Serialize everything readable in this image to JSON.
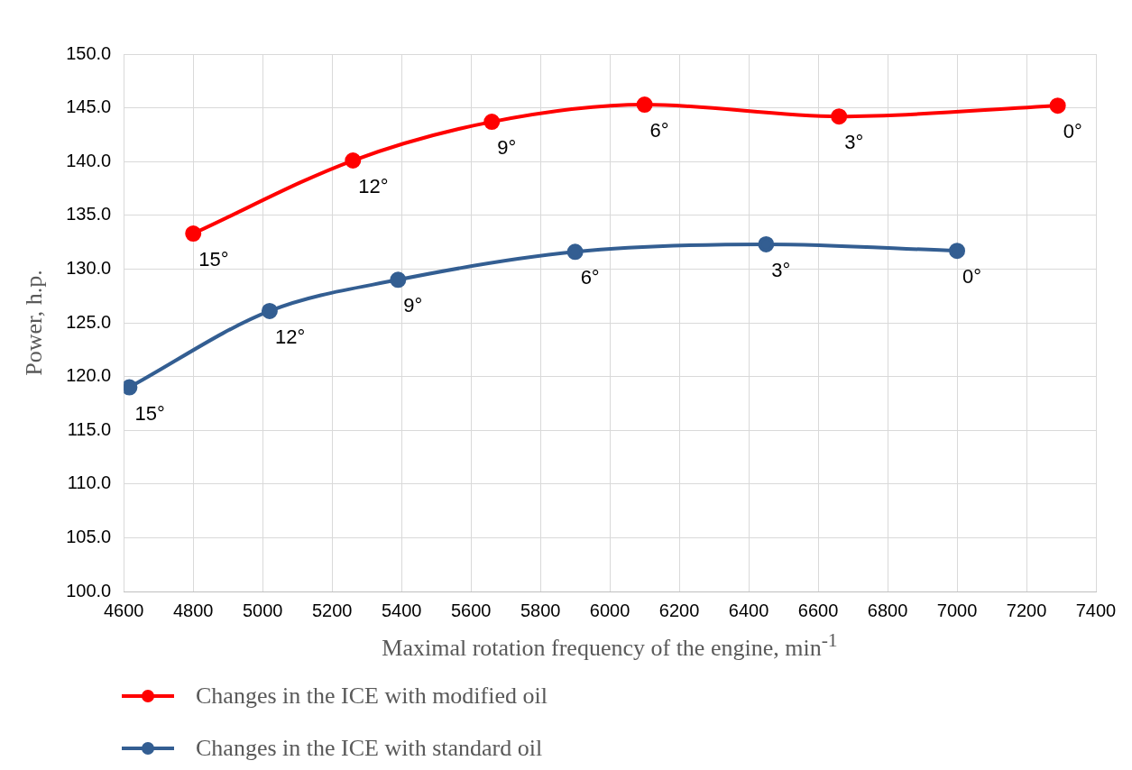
{
  "chart_data": {
    "type": "line",
    "xlabel": "Maximal rotation frequency of the engine, min$^{-1}$",
    "ylabel": "Power, h.p.",
    "xlim": [
      4600,
      7400
    ],
    "xticks": [
      4600,
      4800,
      5000,
      5200,
      5400,
      5600,
      5800,
      6000,
      6200,
      6400,
      6600,
      6800,
      7000,
      7200,
      7400
    ],
    "ylim": [
      100,
      150
    ],
    "yticks": [
      {
        "value": 100,
        "label": "100.0"
      },
      {
        "value": 105,
        "label": "105.0"
      },
      {
        "value": 110,
        "label": "110.0"
      },
      {
        "value": 115,
        "label": "115.0"
      },
      {
        "value": 120,
        "label": "120.0"
      },
      {
        "value": 125,
        "label": "125.0"
      },
      {
        "value": 130,
        "label": "130.0"
      },
      {
        "value": 135,
        "label": "135.0"
      },
      {
        "value": 140,
        "label": "140.0"
      },
      {
        "value": 145,
        "label": "145.0"
      },
      {
        "value": 150,
        "label": "150.0"
      }
    ],
    "grid": true,
    "legend": "bottom",
    "marker": "circle",
    "line_style": "solid",
    "series": [
      {
        "name": "Changes in the ICE with modified oil",
        "color": "#ff0000",
        "x": [
          4800,
          5260,
          5660,
          6100,
          6660,
          7290
        ],
        "values": [
          133.3,
          140.1,
          143.7,
          145.3,
          144.2,
          145.2
        ]
      },
      {
        "name": "Changes in the ICE with standard oil",
        "color": "#335e92",
        "x": [
          4616,
          5020,
          5390,
          5900,
          6450,
          7000
        ],
        "values": [
          119.0,
          126.1,
          129.0,
          131.6,
          132.3,
          131.7
        ]
      }
    ],
    "annotations": [
      {
        "text": "15°",
        "x": 4800,
        "y": 133.3
      },
      {
        "text": "12°",
        "x": 5260,
        "y": 140.1
      },
      {
        "text": "9°",
        "x": 5660,
        "y": 143.7
      },
      {
        "text": "6°",
        "x": 6100,
        "y": 145.3
      },
      {
        "text": "3°",
        "x": 6660,
        "y": 144.2
      },
      {
        "text": "0°",
        "x": 7290,
        "y": 145.2
      },
      {
        "text": "15°",
        "x": 4616,
        "y": 119.0
      },
      {
        "text": "12°",
        "x": 5020,
        "y": 126.1
      },
      {
        "text": "9°",
        "x": 5390,
        "y": 129.0
      },
      {
        "text": "6°",
        "x": 5900,
        "y": 131.6
      },
      {
        "text": "3°",
        "x": 6450,
        "y": 132.3
      },
      {
        "text": "0°",
        "x": 7000,
        "y": 131.7
      }
    ]
  }
}
